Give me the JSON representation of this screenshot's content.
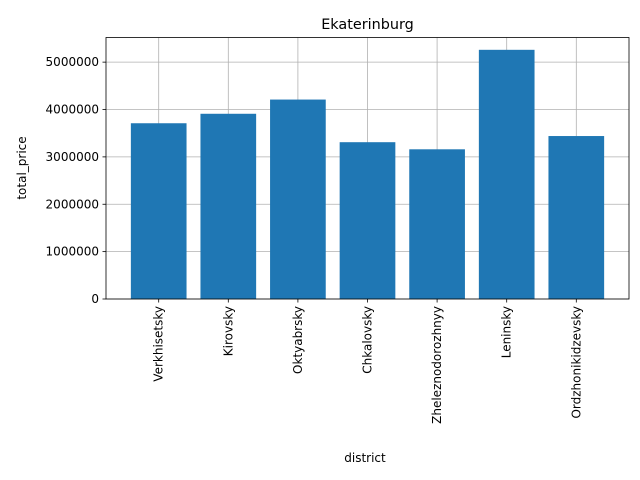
{
  "chart_data": {
    "type": "bar",
    "title": "Ekaterinburg",
    "xlabel": "district",
    "ylabel": "total_price",
    "categories": [
      "Verkhisetsky",
      "Kirovsky",
      "Oktyabrsky",
      "Chkalovsky",
      "Zheleznodorozhnyy",
      "Leninsky",
      "Ordzhonikidzevsky"
    ],
    "values": [
      3710000,
      3910000,
      4210000,
      3310000,
      3160000,
      5260000,
      3440000
    ],
    "ylim": [
      0,
      5520000
    ],
    "yticks": [
      0,
      1000000,
      2000000,
      3000000,
      4000000,
      5000000
    ],
    "ytick_labels": [
      "0",
      "1000000",
      "2000000",
      "3000000",
      "4000000",
      "5000000"
    ],
    "grid": true,
    "bar_color": "#1f77b4"
  }
}
